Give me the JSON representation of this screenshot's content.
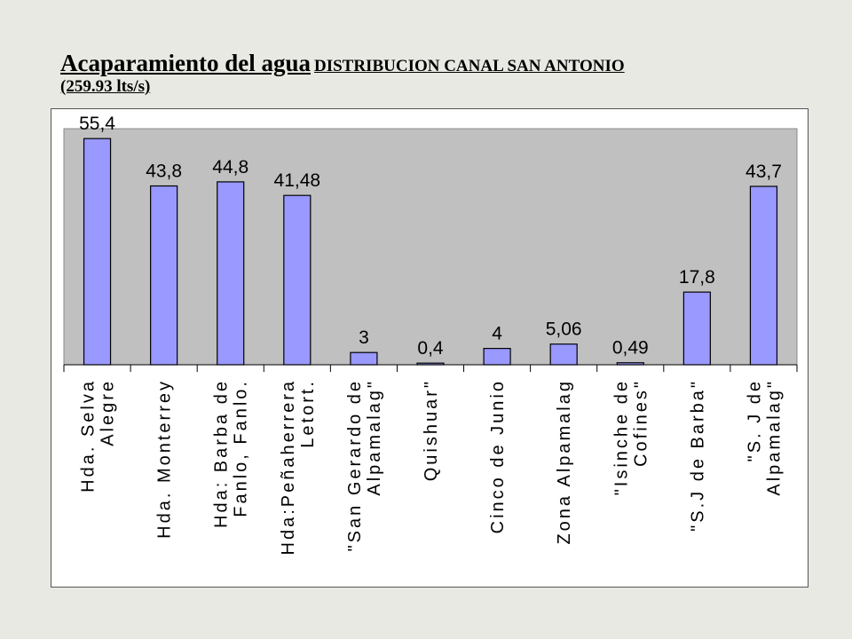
{
  "title": {
    "main": "Acaparamiento del agua",
    "sub": "DISTRIBUCION CANAL SAN ANTONIO",
    "line2": "(259.93 lts/s)"
  },
  "chart_data": {
    "type": "bar",
    "categories": [
      [
        "Hda. Selva",
        "Alegre"
      ],
      [
        "Hda. Monterrey"
      ],
      [
        "Hda: Barba de",
        "Fanlo, Fanlo."
      ],
      [
        "Hda:Peñaherrera",
        "Letort."
      ],
      [
        "\"San Gerardo de",
        "Alpamalag\""
      ],
      [
        "Quishuar\""
      ],
      [
        "Cinco de Junio"
      ],
      [
        "Zona Alpamalag"
      ],
      [
        "\"Isinche de",
        "Cofines\""
      ],
      [
        "\"S.J de Barba\""
      ],
      [
        "\"S. J de",
        "Alpamalag\""
      ]
    ],
    "values": [
      55.4,
      43.8,
      44.8,
      41.48,
      3,
      0.4,
      4,
      5.06,
      0.49,
      17.8,
      43.7
    ],
    "value_labels": [
      "55,4",
      "43,8",
      "44,8",
      "41,48",
      "3",
      "0,4",
      "4",
      "5,06",
      "0,49",
      "17,8",
      "43,7"
    ],
    "ylim": [
      0,
      60
    ],
    "grid": false,
    "colors": {
      "bar": "#9999ff",
      "plot_background": "#c0c0c0",
      "bar_border": "#000000"
    }
  }
}
